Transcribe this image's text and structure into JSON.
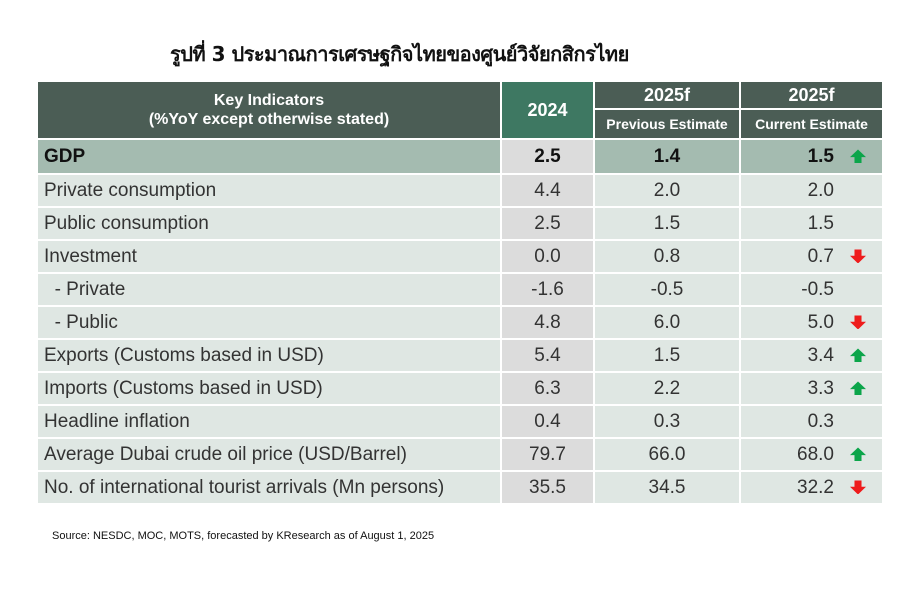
{
  "title": "รูปที่ 3 ประมาณการเศรษฐกิจไทยของศูนย์วิจัยกสิกรไทย",
  "header": {
    "indicators_line1": "Key Indicators",
    "indicators_line2": "(%YoY except otherwise stated)",
    "col_2024": "2024",
    "col_prev_year": "2025f",
    "col_cur_year": "2025f",
    "col_prev": "Previous Estimate",
    "col_cur": "Current Estimate"
  },
  "colors": {
    "up": "#0ba54a",
    "down": "#ee1c1c",
    "header": "#4b5d55"
  },
  "rows": [
    {
      "label": "GDP",
      "v2024": "2.5",
      "prev": "1.4",
      "cur": "1.5",
      "trend": "up"
    },
    {
      "label": "Private consumption",
      "v2024": "4.4",
      "prev": "2.0",
      "cur": "2.0",
      "trend": "none"
    },
    {
      "label": "Public consumption",
      "v2024": "2.5",
      "prev": "1.5",
      "cur": "1.5",
      "trend": "none"
    },
    {
      "label": "Investment",
      "v2024": "0.0",
      "prev": "0.8",
      "cur": "0.7",
      "trend": "down"
    },
    {
      "label": "  - Private",
      "v2024": "-1.6",
      "prev": "-0.5",
      "cur": "-0.5",
      "trend": "none"
    },
    {
      "label": "  - Public",
      "v2024": "4.8",
      "prev": "6.0",
      "cur": "5.0",
      "trend": "down"
    },
    {
      "label": "Exports (Customs based in USD)",
      "v2024": "5.4",
      "prev": "1.5",
      "cur": "3.4",
      "trend": "up"
    },
    {
      "label": "Imports (Customs based in USD)",
      "v2024": "6.3",
      "prev": "2.2",
      "cur": "3.3",
      "trend": "up"
    },
    {
      "label": "Headline inflation",
      "v2024": "0.4",
      "prev": "0.3",
      "cur": "0.3",
      "trend": "none"
    },
    {
      "label": "Average Dubai crude oil price (USD/Barrel)",
      "v2024": "79.7",
      "prev": "66.0",
      "cur": "68.0",
      "trend": "up"
    },
    {
      "label": "No. of international tourist arrivals (Mn persons)",
      "v2024": "35.5",
      "prev": "34.5",
      "cur": "32.2",
      "trend": "down"
    }
  ],
  "source": "Source: NESDC, MOC, MOTS, forecasted by KResearch as of August 1, 2025"
}
